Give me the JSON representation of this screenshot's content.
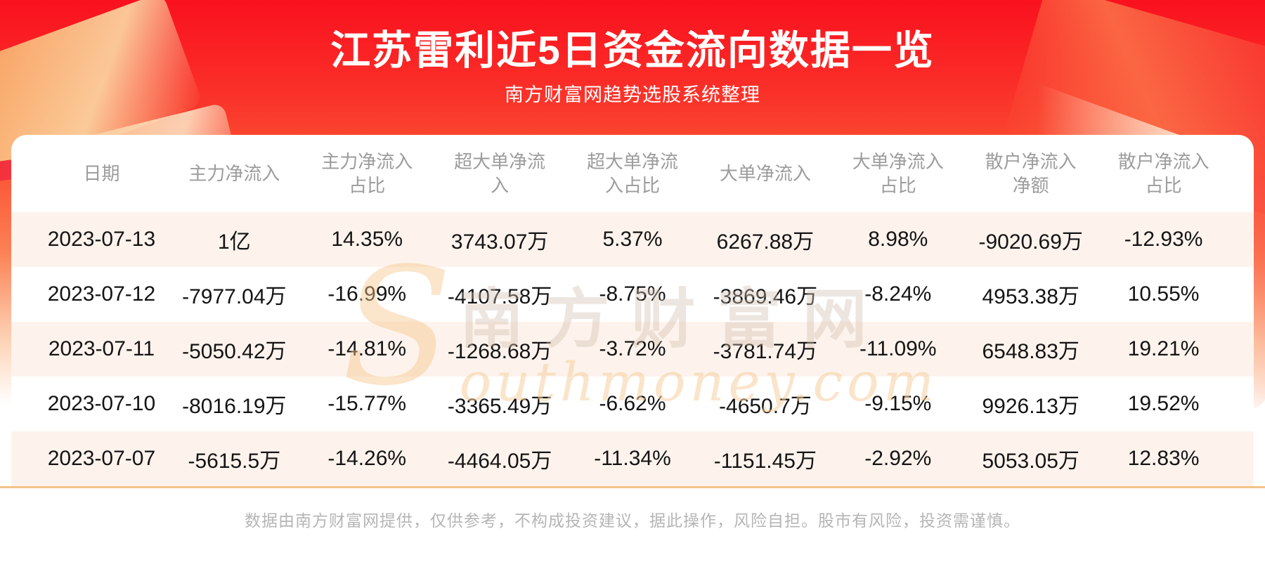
{
  "header": {
    "title": "江苏雷利近5日资金流向数据一览",
    "subtitle": "南方财富网趋势选股系统整理"
  },
  "watermark": {
    "initial": "S",
    "cn": "南方财富网",
    "en": "outhmoney.com"
  },
  "table": {
    "columns": [
      "日期",
      "主力净流入",
      "主力净流入\n占比",
      "超大单净流\n入",
      "超大单净流\n入占比",
      "大单净流入",
      "大单净流入\n占比",
      "散户净流入\n净额",
      "散户净流入\n占比"
    ],
    "rows": [
      [
        "2023-07-13",
        "1亿",
        "14.35%",
        "3743.07万",
        "5.37%",
        "6267.88万",
        "8.98%",
        "-9020.69万",
        "-12.93%"
      ],
      [
        "2023-07-12",
        "-7977.04万",
        "-16.99%",
        "-4107.58万",
        "-8.75%",
        "-3869.46万",
        "-8.24%",
        "4953.38万",
        "10.55%"
      ],
      [
        "2023-07-11",
        "-5050.42万",
        "-14.81%",
        "-1268.68万",
        "-3.72%",
        "-3781.74万",
        "-11.09%",
        "6548.83万",
        "19.21%"
      ],
      [
        "2023-07-10",
        "-8016.19万",
        "-15.77%",
        "-3365.49万",
        "-6.62%",
        "-4650.7万",
        "-9.15%",
        "9926.13万",
        "19.52%"
      ],
      [
        "2023-07-07",
        "-5615.5万",
        "-14.26%",
        "-4464.05万",
        "-11.34%",
        "-1151.45万",
        "-2.92%",
        "5053.05万",
        "12.83%"
      ]
    ]
  },
  "footer": {
    "disclaimer": "数据由南方财富网提供，仅供参考，不构成投资建议，据此操作，风险自担。股市有风险，投资需谨慎。"
  },
  "colors": {
    "hero_red_top": "#f9111e",
    "hero_orange_bottom": "#fc8154",
    "row_stripe": "#fdf3ec",
    "divider_orange": "#f2c28a",
    "header_text_gray": "#9c9c9c",
    "body_text": "#141414",
    "footer_text_gray": "#b5b5b5"
  },
  "chart_data": {
    "type": "table",
    "title": "江苏雷利近5日资金流向数据一览",
    "subtitle": "南方财富网趋势选股系统整理",
    "columns": [
      "日期",
      "主力净流入",
      "主力净流入占比",
      "超大单净流入",
      "超大单净流入占比",
      "大单净流入",
      "大单净流入占比",
      "散户净流入净额",
      "散户净流入占比"
    ],
    "rows": [
      [
        "2023-07-13",
        "1亿",
        "14.35%",
        "3743.07万",
        "5.37%",
        "6267.88万",
        "8.98%",
        "-9020.69万",
        "-12.93%"
      ],
      [
        "2023-07-12",
        "-7977.04万",
        "-16.99%",
        "-4107.58万",
        "-8.75%",
        "-3869.46万",
        "-8.24%",
        "4953.38万",
        "10.55%"
      ],
      [
        "2023-07-11",
        "-5050.42万",
        "-14.81%",
        "-1268.68万",
        "-3.72%",
        "-3781.74万",
        "-11.09%",
        "6548.83万",
        "19.21%"
      ],
      [
        "2023-07-10",
        "-8016.19万",
        "-15.77%",
        "-3365.49万",
        "-6.62%",
        "-4650.7万",
        "-9.15%",
        "9926.13万",
        "19.52%"
      ],
      [
        "2023-07-07",
        "-5615.5万",
        "-14.26%",
        "-4464.05万",
        "-11.34%",
        "-1151.45万",
        "-2.92%",
        "5053.05万",
        "12.83%"
      ]
    ]
  }
}
